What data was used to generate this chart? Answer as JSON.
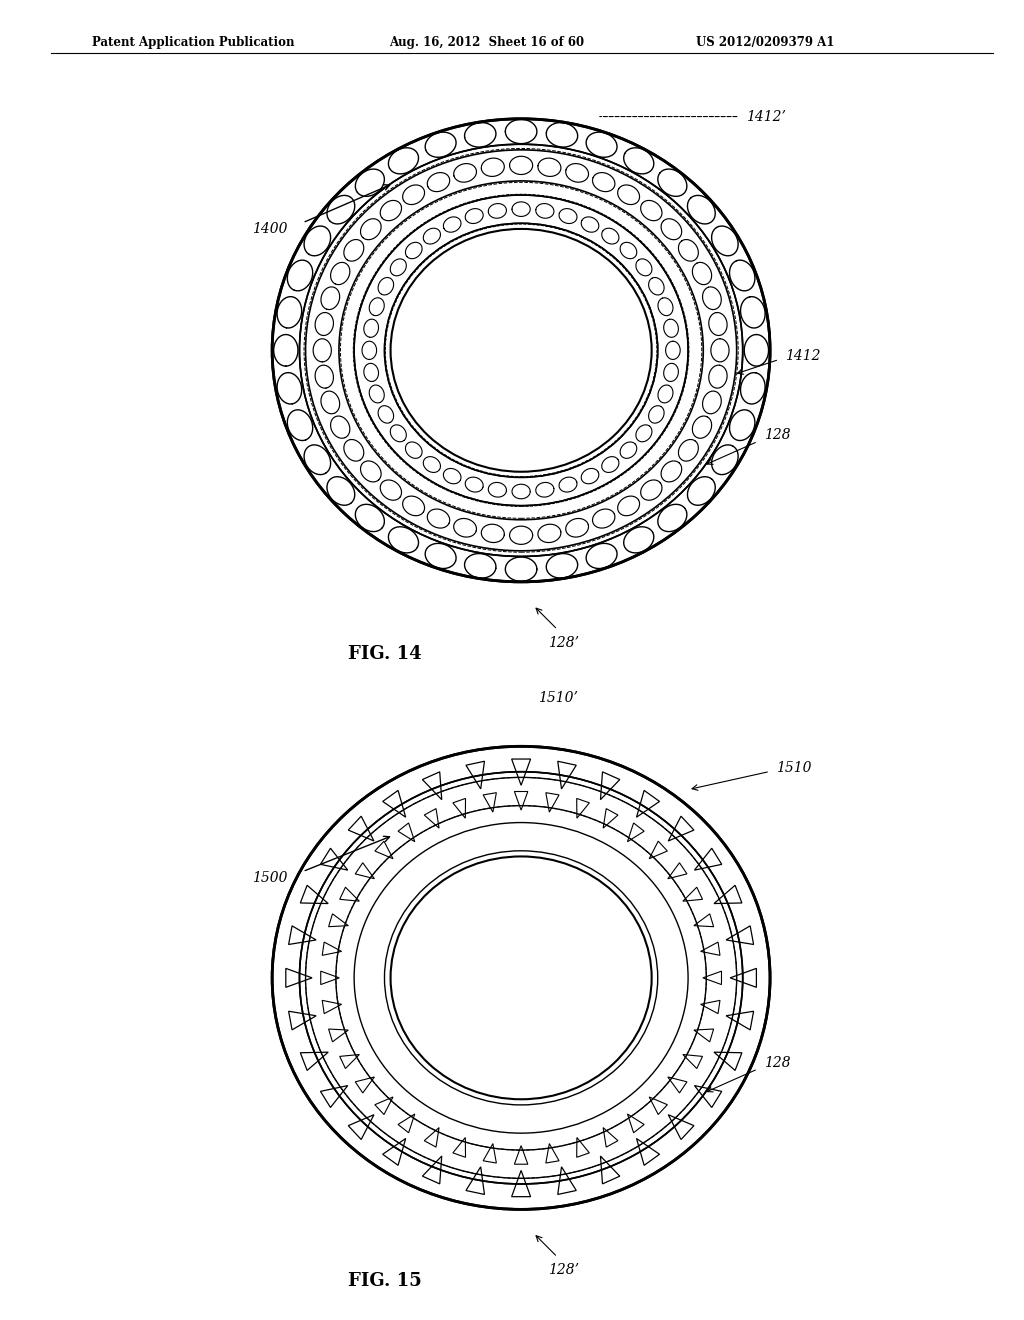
{
  "header_left": "Patent Application Publication",
  "header_mid": "Aug. 16, 2012  Sheet 16 of 60",
  "header_right": "US 2012/0209379 A1",
  "fig14_label": "FIG. 14",
  "fig15_label": "FIG. 15",
  "fig14_ref1400": "1400",
  "fig14_ref1412": "1412",
  "fig14_ref1412p": "1412’",
  "fig14_ref128": "128",
  "fig14_ref128p": "128’",
  "fig15_ref1500": "1500",
  "fig15_ref1510": "1510",
  "fig15_ref1510p": "1510’",
  "fig15_ref128": "128",
  "fig15_ref128p": "128’",
  "bg_color": "#ffffff",
  "line_color": "#000000"
}
